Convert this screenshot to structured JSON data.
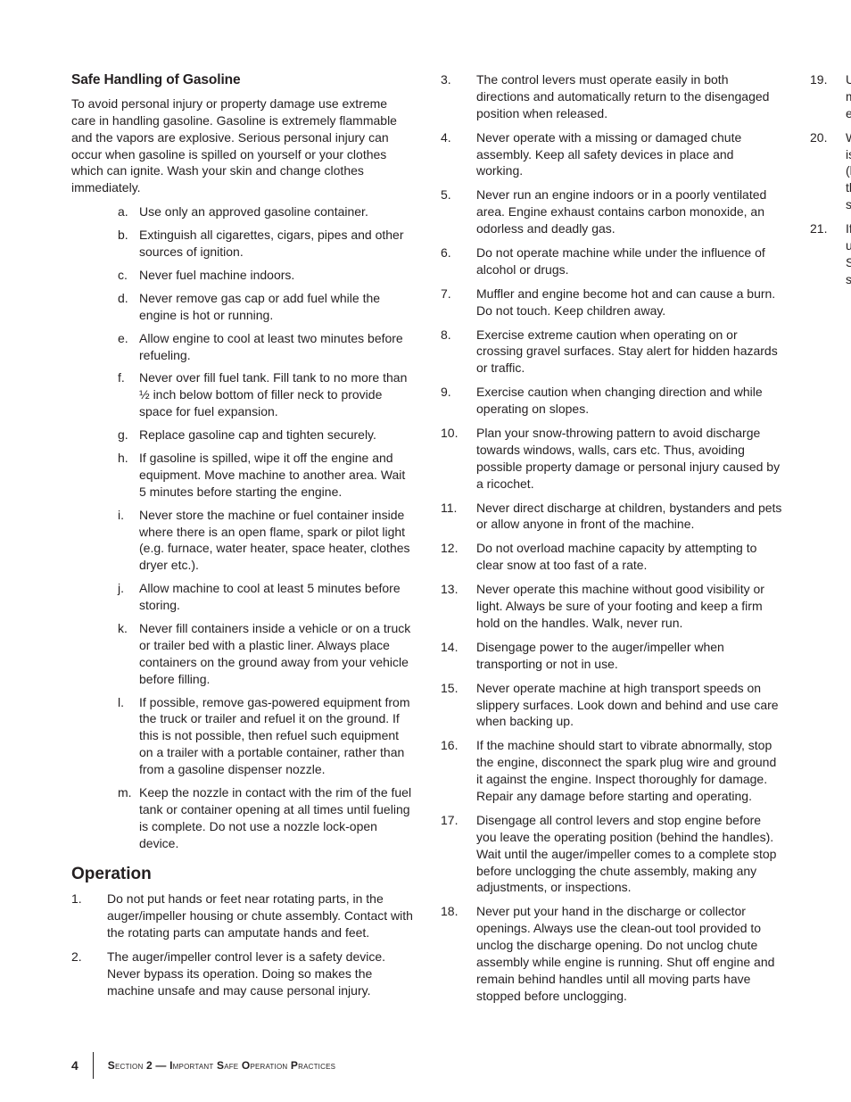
{
  "section1": {
    "heading": "Safe Handling of Gasoline",
    "intro": "To avoid personal injury or property damage use extreme care in handling gasoline. Gasoline is extremely flammable and the vapors are explosive. Serious personal injury can occur when gasoline is spilled on yourself or your clothes which can ignite. Wash your skin and change clothes immediately.",
    "items": [
      {
        "m": "a.",
        "t": "Use only an approved gasoline container."
      },
      {
        "m": "b.",
        "t": "Extinguish all cigarettes, cigars, pipes and other sources of ignition."
      },
      {
        "m": "c.",
        "t": "Never fuel machine indoors."
      },
      {
        "m": "d.",
        "t": "Never remove gas cap or add fuel while the engine is hot or running."
      },
      {
        "m": "e.",
        "t": "Allow engine to cool at least two minutes before refueling."
      },
      {
        "m": "f.",
        "t": "Never over fill fuel tank. Fill tank to no more than ½ inch below bottom of filler neck to provide space for fuel expansion."
      },
      {
        "m": "g.",
        "t": "Replace gasoline cap and tighten securely."
      },
      {
        "m": "h.",
        "t": "If gasoline is spilled, wipe it off the engine and equipment. Move machine to another area. Wait 5 minutes before starting the engine."
      },
      {
        "m": "i.",
        "t": "Never store the machine or fuel container inside where there is an open flame, spark or pilot light (e.g. furnace, water heater, space heater, clothes dryer etc.)."
      },
      {
        "m": "j.",
        "t": "Allow machine to cool at least 5 minutes before storing."
      },
      {
        "m": "k.",
        "t": "Never fill containers inside a vehicle or on a truck or trailer bed with a plastic liner. Always place containers on the ground away from your vehicle before filling."
      },
      {
        "m": "l.",
        "t": "If possible, remove gas-powered equipment from the truck or trailer and refuel it on the ground. If this is not possible, then refuel such equipment on a trailer with a portable container, rather than from a gasoline dispenser nozzle."
      },
      {
        "m": "m.",
        "t": "Keep the nozzle in contact with the rim of the fuel tank or container opening at all times until fueling is complete. Do not use a nozzle lock-open device."
      }
    ]
  },
  "section2": {
    "heading": "Operation",
    "items": [
      {
        "m": "1.",
        "t": "Do not put hands or feet near rotating parts, in the auger/impeller housing or chute assembly. Contact with the rotating parts can amputate hands and feet."
      },
      {
        "m": "2.",
        "t": "The auger/impeller control lever is a safety device. Never bypass its operation. Doing so makes the machine unsafe and may cause personal injury."
      },
      {
        "m": "3.",
        "t": "The control levers must operate easily in both directions and automatically return to the disengaged position when released."
      },
      {
        "m": "4.",
        "t": "Never operate with a missing or damaged chute assembly. Keep all safety devices in place and working."
      },
      {
        "m": "5.",
        "t": "Never run an engine indoors or in a poorly ventilated area. Engine exhaust contains carbon monoxide, an odorless and deadly gas."
      },
      {
        "m": "6.",
        "t": "Do not operate machine while under the influence of alcohol or drugs."
      },
      {
        "m": "7.",
        "t": "Muffler and engine become hot and can cause a burn. Do not touch. Keep children away."
      },
      {
        "m": "8.",
        "t": "Exercise extreme caution when operating on or crossing gravel surfaces. Stay alert for hidden hazards or traffic."
      },
      {
        "m": "9.",
        "t": "Exercise caution when changing direction and while operating on slopes."
      },
      {
        "m": "10.",
        "t": "Plan your snow-throwing pattern to avoid discharge towards windows, walls, cars etc. Thus, avoiding possible property damage or personal injury caused by a ricochet."
      },
      {
        "m": "11.",
        "t": "Never direct discharge at children, bystanders and pets or allow anyone in front of the machine."
      },
      {
        "m": "12.",
        "t": "Do not overload machine capacity by attempting to clear snow at too fast of a rate."
      },
      {
        "m": "13.",
        "t": "Never operate this machine without good visibility or light. Always be sure of your footing and keep a firm hold on the handles. Walk, never run."
      },
      {
        "m": "14.",
        "t": "Disengage power to the auger/impeller when transporting or not in use."
      },
      {
        "m": "15.",
        "t": "Never operate machine at high transport speeds on slippery surfaces. Look down and behind and use care when backing up."
      },
      {
        "m": "16.",
        "t": "If the machine should start to vibrate abnormally, stop the engine, disconnect the spark plug wire and ground it against the engine. Inspect thoroughly for damage. Repair any damage before starting and operating."
      },
      {
        "m": "17.",
        "t": "Disengage all control levers and stop engine before you leave the operating position (behind the handles). Wait until the auger/impeller comes to a complete stop before unclogging the chute assembly, making any adjustments, or inspections."
      },
      {
        "m": "18.",
        "t": "Never put your hand in the discharge or collector openings. Always use the clean-out tool provided to unclog the discharge opening. Do not unclog chute assembly while engine is running. Shut off engine and remain behind handles until all moving parts have stopped before unclogging."
      },
      {
        "m": "19.",
        "t": "Use only attachments and accessories approved by the manufacturer (e.g. wheel weights, tire chains, cabs etc.)."
      },
      {
        "m": "20.",
        "t": "When starting engine, pull cord slowly until resistance is felt, then pull rapidly. Rapid retraction of starter cord (kickback) will pull hand and arm toward engine faster than you can let go. Broken bones, fractures, bruises or sprains could result."
      },
      {
        "m": "21.",
        "t": "If situations occur which are not covered in this manual, use care and good judgment. Contact Customer Support for assistance and the name of your nearest servicing dealer."
      }
    ]
  },
  "footer": {
    "page": "4",
    "section_label": "Section 2 — Important Safe Operation Practices"
  }
}
